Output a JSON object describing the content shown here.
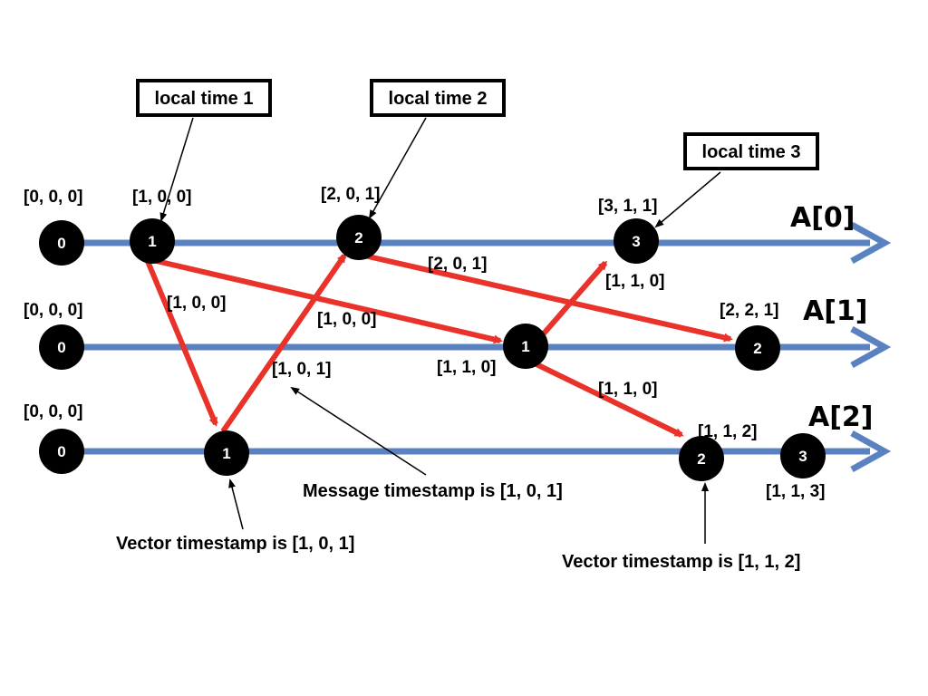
{
  "processes": [
    {
      "name": "A[0]",
      "initial": "[0, 0, 0]"
    },
    {
      "name": "A[1]",
      "initial": "[0, 0, 0]"
    },
    {
      "name": "A[2]",
      "initial": "[0, 0, 0]"
    }
  ],
  "nodes": {
    "a0_e0": "0",
    "a0_e1": "1",
    "a0_e2": "2",
    "a0_e3": "3",
    "a1_e0": "0",
    "a1_e1": "1",
    "a1_e2": "2",
    "a2_e0": "0",
    "a2_e1": "1",
    "a2_e2": "2",
    "a2_e3": "3"
  },
  "vectors": {
    "a0_e1": "[1, 0, 0]",
    "a0_e2": "[2, 0, 1]",
    "a0_e3": "[3, 1, 1]",
    "a1_e1": "[1, 1, 0]",
    "a1_e2": "[2, 2, 1]",
    "a2_e2": "[1, 1, 2]",
    "a2_e3": "[1, 1, 3]"
  },
  "messages": {
    "a0e1_to_a2e1": "[1, 0, 0]",
    "a0e1_to_a1e1": "[1, 0, 0]",
    "a2e1_to_a0e2": "[1, 0, 1]",
    "a0e2_to_a1e2": "[2, 0, 1]",
    "a1e1_to_a0e3": "[1, 1, 0]",
    "a1e1_to_a2e2": "[1, 1, 0]"
  },
  "callouts": {
    "local_time_1": "local time 1",
    "local_time_2": "local time 2",
    "local_time_3": "local time 3"
  },
  "annotations": {
    "message_timestamp": "Message timestamp is [1, 0, 1]",
    "vector_timestamp_a2e1": "Vector timestamp is [1, 0, 1]",
    "vector_timestamp_a2e2": "Vector timestamp is [1, 1, 2]"
  },
  "colors": {
    "timeline": "#5b82c0",
    "message": "#e8322a",
    "node": "#000000"
  }
}
